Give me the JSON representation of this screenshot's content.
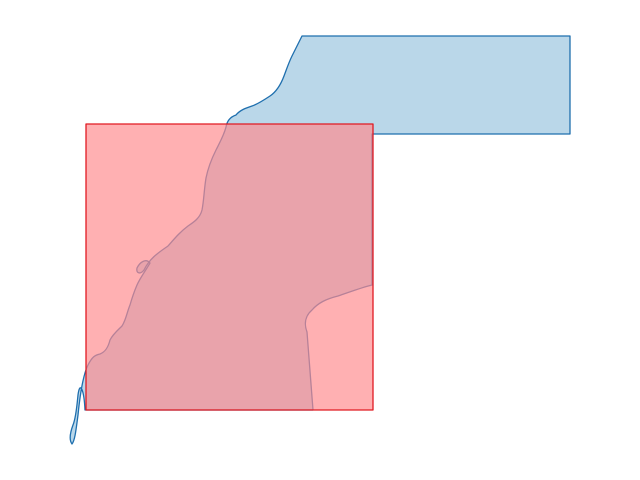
{
  "map": {
    "layers": [
      {
        "name": "land-region",
        "fill": "#a9cde4",
        "fill_opacity": 0.8,
        "stroke": "#1f6fae"
      },
      {
        "name": "overlay-rectangle",
        "fill": "#ff8a8e",
        "fill_opacity": 0.68,
        "stroke": "#e01a22"
      }
    ]
  }
}
